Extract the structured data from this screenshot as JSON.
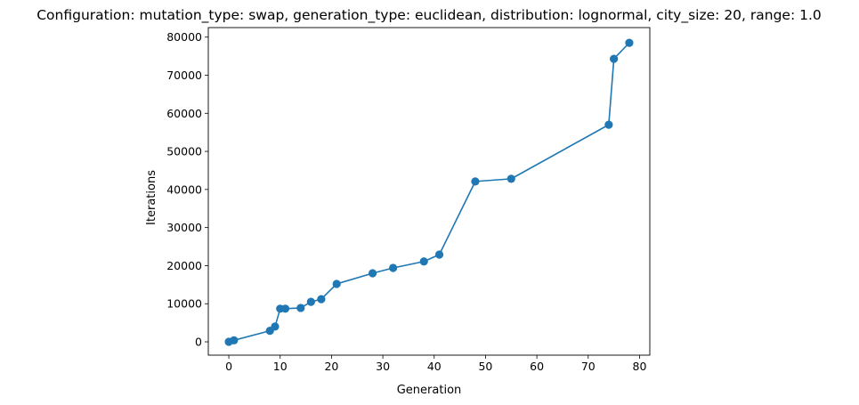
{
  "chart_data": {
    "type": "line",
    "title": "Configuration: mutation_type: swap, generation_type: euclidean, distribution: lognormal, city_size: 20, range: 1.0",
    "xlabel": "Generation",
    "ylabel": "Iterations",
    "xlim": [
      -4,
      82
    ],
    "ylim": [
      -3500,
      82500
    ],
    "xticks": [
      0,
      10,
      20,
      30,
      40,
      50,
      60,
      70,
      80
    ],
    "yticks": [
      0,
      10000,
      20000,
      30000,
      40000,
      50000,
      60000,
      70000,
      80000
    ],
    "grid": false,
    "markers": "circle",
    "series": [
      {
        "color": "#1f77b4",
        "x": [
          0,
          1,
          8,
          9,
          10,
          11,
          14,
          16,
          18,
          21,
          28,
          32,
          38,
          41,
          48,
          55,
          74,
          75,
          78
        ],
        "y": [
          0,
          400,
          2900,
          4000,
          8700,
          8700,
          8900,
          10500,
          11200,
          15200,
          18000,
          19400,
          21100,
          22900,
          42100,
          42800,
          57000,
          74300,
          78500
        ]
      }
    ]
  }
}
